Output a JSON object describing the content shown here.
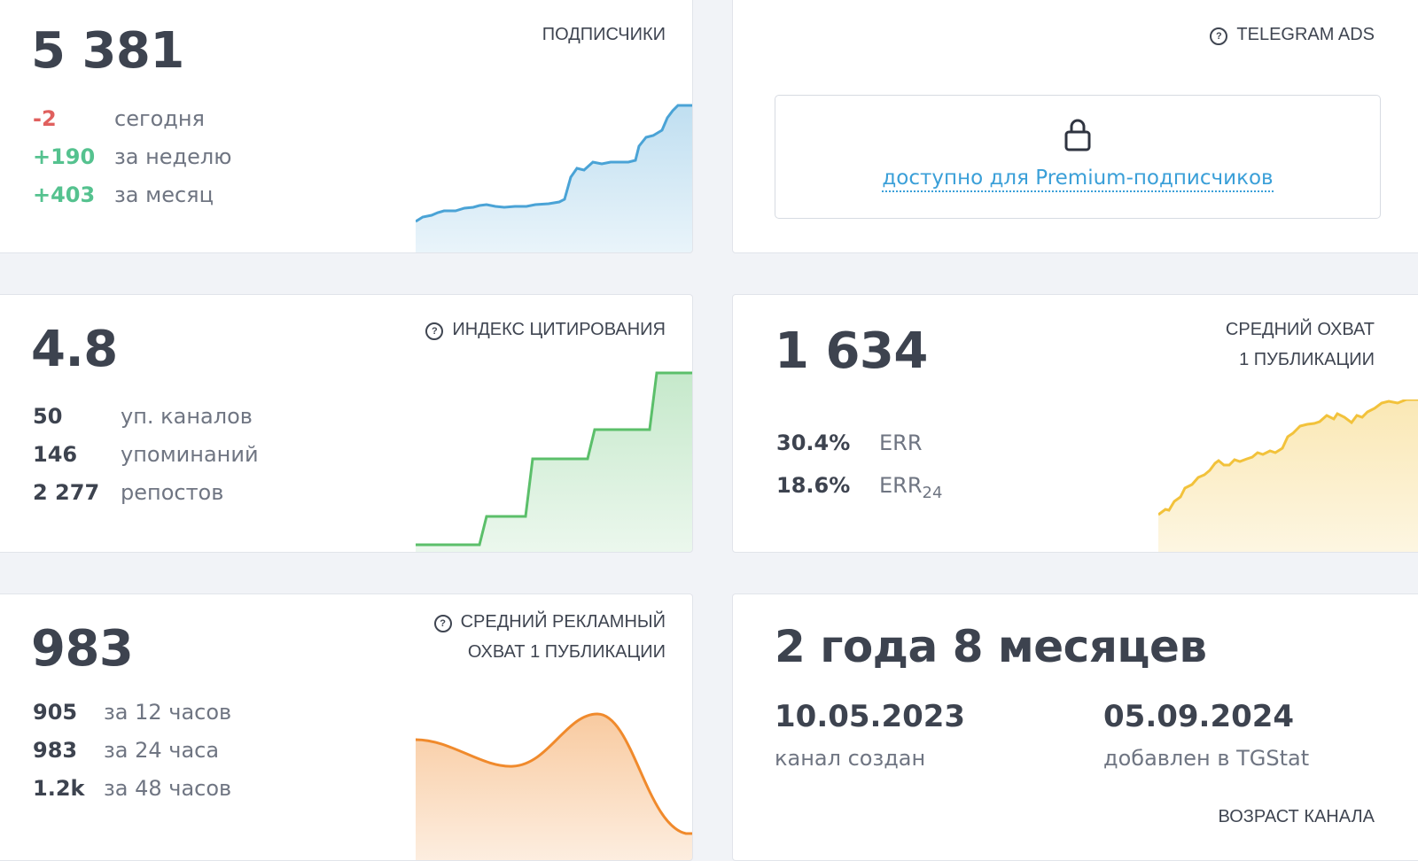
{
  "subscribers": {
    "value": "5 381",
    "title": "ПОДПИСЧИКИ",
    "rows": [
      {
        "value": "-2",
        "label": "сегодня"
      },
      {
        "value": "+190",
        "label": "за неделю"
      },
      {
        "value": "+403",
        "label": "за месяц"
      }
    ],
    "color": "#4aa3d6"
  },
  "ads": {
    "title": "TELEGRAM ADS",
    "help_icon": "question-circle-icon",
    "lock_icon": "lock-icon",
    "link_text": "доступно для Premium-подписчиков",
    "link_color": "#3a9fd8"
  },
  "citation": {
    "value": "4.8",
    "title": "ИНДЕКС ЦИТИРОВАНИЯ",
    "rows": [
      {
        "value": "50",
        "label": "уп. каналов"
      },
      {
        "value": "146",
        "label": "упоминаний"
      },
      {
        "value": "2 277",
        "label": "репостов"
      }
    ],
    "color": "#5bbf6a"
  },
  "reach": {
    "value": "1 634",
    "title_line1": "СРЕДНИЙ ОХВАТ",
    "title_line2": "1 ПУБЛИКАЦИИ",
    "err": {
      "value": "30.4%",
      "label": "ERR"
    },
    "err24": {
      "value": "18.6%",
      "label": "ERR",
      "sub": "24"
    },
    "color": "#f2c23b"
  },
  "ad_reach": {
    "value": "983",
    "title_line1": "СРЕДНИЙ РЕКЛАМНЫЙ",
    "title_line2": "ОХВАТ 1 ПУБЛИКАЦИИ",
    "rows": [
      {
        "value": "905",
        "label": "за 12 часов"
      },
      {
        "value": "983",
        "label": "за 24 часа"
      },
      {
        "value": "1.2k",
        "label": "за 48 часов"
      }
    ],
    "color": "#f08a2c"
  },
  "age": {
    "value": "2 года 8 месяцев",
    "created_date": "10.05.2023",
    "created_label": "канал создан",
    "added_date": "05.09.2024",
    "added_label": "добавлен в TGStat",
    "title": "ВОЗРАСТ КАНАЛА"
  }
}
